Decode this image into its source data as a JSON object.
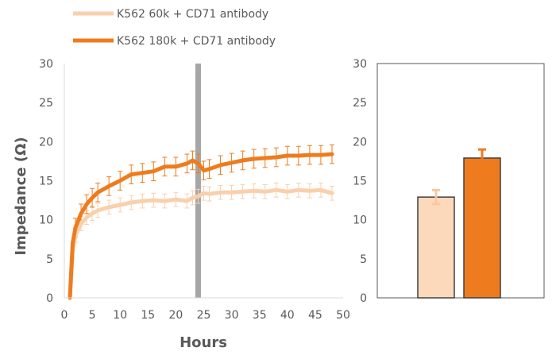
{
  "chart_data": [
    {
      "type": "line",
      "xlabel": "Hours",
      "ylabel": "Impedance (Ω)",
      "xlim": [
        0,
        50
      ],
      "ylim": [
        0,
        30
      ],
      "x_ticks": [
        "0",
        "5",
        "10",
        "15",
        "20",
        "25",
        "30",
        "35",
        "40",
        "45",
        "50"
      ],
      "y_ticks": [
        "0",
        "5",
        "10",
        "15",
        "20",
        "25",
        "30"
      ],
      "grid": false,
      "legend_position": "top",
      "marker_line_x": 24,
      "series": [
        {
          "name": "K562 60k + CD71 antibody",
          "color": "#F9D0AC",
          "x": [
            1,
            1.5,
            2,
            3,
            4,
            5,
            6,
            8,
            10,
            12,
            14,
            16,
            18,
            20,
            22,
            23,
            24,
            25,
            26,
            28,
            30,
            32,
            34,
            36,
            38,
            40,
            42,
            44,
            46,
            48
          ],
          "y": [
            0,
            6,
            8,
            9.5,
            10.3,
            10.8,
            11.2,
            11.6,
            11.9,
            12.2,
            12.4,
            12.5,
            12.4,
            12.6,
            12.4,
            12.8,
            13.0,
            13.4,
            13.3,
            13.5,
            13.5,
            13.6,
            13.7,
            13.6,
            13.8,
            13.6,
            13.8,
            13.7,
            13.8,
            13.4
          ],
          "error": 0.9
        },
        {
          "name": "K562 180k + CD71 antibody",
          "color": "#EE7C1E",
          "x": [
            1,
            1.5,
            2,
            3,
            4,
            5,
            6,
            8,
            10,
            12,
            14,
            16,
            18,
            20,
            22,
            23,
            24,
            25,
            26,
            28,
            30,
            32,
            34,
            36,
            38,
            40,
            42,
            44,
            46,
            48
          ],
          "y": [
            0,
            7,
            9,
            10.8,
            12,
            12.8,
            13.5,
            14.3,
            15,
            15.8,
            16,
            16.2,
            16.8,
            16.8,
            17.2,
            17.6,
            17.2,
            16.3,
            16.5,
            17,
            17.3,
            17.6,
            17.8,
            17.9,
            18,
            18.2,
            18.2,
            18.3,
            18.3,
            18.4
          ],
          "error": 1.2
        }
      ]
    },
    {
      "type": "bar",
      "ylim": [
        0,
        30
      ],
      "y_ticks": [
        "0",
        "5",
        "10",
        "15",
        "20",
        "25",
        "30"
      ],
      "grid": false,
      "bars": [
        {
          "series": "K562 60k + CD71 antibody",
          "value": 12.9,
          "error": 0.9,
          "color": "#FDD9BC"
        },
        {
          "series": "K562 180k + CD71 antibody",
          "value": 17.9,
          "error": 1.1,
          "color": "#EE7C1E"
        }
      ]
    }
  ]
}
